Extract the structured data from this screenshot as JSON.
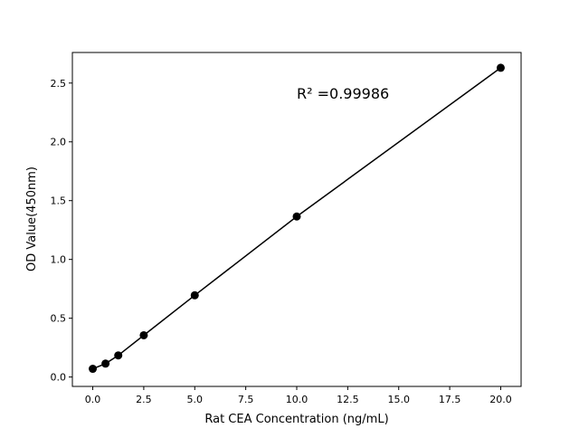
{
  "chart_data": {
    "type": "line",
    "title": "",
    "xlabel": "Rat CEA Concentration (ng/mL)",
    "ylabel": "OD Value(450nm)",
    "xlim": [
      -1,
      21
    ],
    "ylim": [
      -0.08,
      2.76
    ],
    "xticks": [
      "0.0",
      "2.5",
      "5.0",
      "7.5",
      "10.0",
      "12.5",
      "15.0",
      "17.5",
      "20.0"
    ],
    "yticks": [
      "0.0",
      "0.5",
      "1.0",
      "1.5",
      "2.0",
      "2.5"
    ],
    "grid": false,
    "annotation": "R² =0.99986",
    "color": "#000000",
    "series": [
      {
        "x": [
          0,
          0.625,
          1.25,
          2.5,
          5,
          10,
          20
        ],
        "y": [
          0.07,
          0.114,
          0.184,
          0.355,
          0.695,
          1.365,
          2.63
        ],
        "marker": "circle"
      }
    ]
  }
}
